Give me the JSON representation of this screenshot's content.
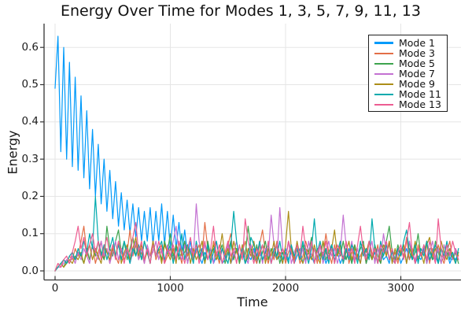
{
  "chart_data": {
    "type": "line",
    "title": "Energy Over Time for Modes 1, 3, 5, 7, 9, 11, 13",
    "xlabel": "Time",
    "ylabel": "Energy",
    "xlim": [
      -95,
      3525
    ],
    "ylim": [
      -0.016,
      0.66
    ],
    "grid": true,
    "legend_position": "top-right",
    "background_color": "#ffffff",
    "grid_color": "#e5e5e5",
    "axis_color": "#333333",
    "text_color": "#1c1c1c",
    "xticks": [
      0,
      1000,
      2000,
      3000
    ],
    "xtick_labels": [
      "0",
      "1000",
      "2000",
      "3000"
    ],
    "yticks": [
      0.0,
      0.1,
      0.2,
      0.3,
      0.4,
      0.5,
      0.6
    ],
    "ytick_labels": [
      "0.0",
      "0.1",
      "0.2",
      "0.3",
      "0.4",
      "0.5",
      "0.6"
    ],
    "x_start": 0,
    "x_step": 25,
    "series": [
      {
        "name": "Mode 1",
        "color": "#009AFA",
        "values": [
          0.49,
          0.63,
          0.32,
          0.6,
          0.3,
          0.56,
          0.28,
          0.52,
          0.27,
          0.47,
          0.25,
          0.43,
          0.22,
          0.38,
          0.2,
          0.34,
          0.18,
          0.3,
          0.16,
          0.27,
          0.14,
          0.24,
          0.12,
          0.21,
          0.11,
          0.19,
          0.1,
          0.18,
          0.09,
          0.17,
          0.08,
          0.16,
          0.08,
          0.17,
          0.07,
          0.16,
          0.08,
          0.18,
          0.07,
          0.16,
          0.06,
          0.15,
          0.06,
          0.13,
          0.05,
          0.11,
          0.04,
          0.08,
          0.03,
          0.06,
          0.04,
          0.02,
          0.05,
          0.03,
          0.06,
          0.02,
          0.04,
          0.05,
          0.02,
          0.03,
          0.05,
          0.02,
          0.04,
          0.06,
          0.03,
          0.05,
          0.02,
          0.04,
          0.03,
          0.06,
          0.02,
          0.05,
          0.03,
          0.04,
          0.06,
          0.02,
          0.05,
          0.03,
          0.04,
          0.02,
          0.06,
          0.03,
          0.05,
          0.02,
          0.04,
          0.06,
          0.02,
          0.05,
          0.03,
          0.04,
          0.02,
          0.06,
          0.03,
          0.05,
          0.02,
          0.04,
          0.06,
          0.03,
          0.05,
          0.02,
          0.04,
          0.03,
          0.06,
          0.02,
          0.05,
          0.03,
          0.04,
          0.06,
          0.02,
          0.05,
          0.03,
          0.05,
          0.02,
          0.06,
          0.03,
          0.04,
          0.02,
          0.06,
          0.03,
          0.05,
          0.02,
          0.04,
          0.06,
          0.03,
          0.05,
          0.02,
          0.04,
          0.03,
          0.06,
          0.02,
          0.05,
          0.03,
          0.04,
          0.02,
          0.06,
          0.03,
          0.05,
          0.02,
          0.04,
          0.03,
          0.05
        ]
      },
      {
        "name": "Mode 3",
        "color": "#E36F47",
        "values": [
          0.0,
          0.02,
          0.01,
          0.03,
          0.02,
          0.04,
          0.03,
          0.06,
          0.04,
          0.08,
          0.12,
          0.05,
          0.03,
          0.07,
          0.02,
          0.05,
          0.08,
          0.03,
          0.06,
          0.02,
          0.07,
          0.04,
          0.02,
          0.06,
          0.03,
          0.05,
          0.11,
          0.04,
          0.07,
          0.03,
          0.05,
          0.02,
          0.06,
          0.04,
          0.08,
          0.03,
          0.05,
          0.07,
          0.02,
          0.04,
          0.06,
          0.03,
          0.07,
          0.05,
          0.02,
          0.08,
          0.04,
          0.06,
          0.03,
          0.05,
          0.07,
          0.04,
          0.13,
          0.06,
          0.03,
          0.08,
          0.05,
          0.02,
          0.06,
          0.04,
          0.07,
          0.1,
          0.03,
          0.06,
          0.02,
          0.05,
          0.08,
          0.03,
          0.06,
          0.04,
          0.02,
          0.07,
          0.11,
          0.05,
          0.02,
          0.06,
          0.03,
          0.08,
          0.04,
          0.06,
          0.02,
          0.05,
          0.07,
          0.03,
          0.06,
          0.02,
          0.04,
          0.08,
          0.05,
          0.03,
          0.06,
          0.02,
          0.07,
          0.04,
          0.1,
          0.05,
          0.02,
          0.07,
          0.04,
          0.06,
          0.03,
          0.08,
          0.02,
          0.05,
          0.07,
          0.03,
          0.04,
          0.06,
          0.02,
          0.08,
          0.05,
          0.03,
          0.07,
          0.02,
          0.06,
          0.04,
          0.08,
          0.03,
          0.05,
          0.02,
          0.06,
          0.04,
          0.09,
          0.03,
          0.06,
          0.02,
          0.07,
          0.04,
          0.05,
          0.08,
          0.02,
          0.06,
          0.03,
          0.07,
          0.04,
          0.02,
          0.05,
          0.08,
          0.03,
          0.06,
          0.04
        ]
      },
      {
        "name": "Mode 5",
        "color": "#3DA44E",
        "values": [
          0.0,
          0.01,
          0.02,
          0.01,
          0.03,
          0.02,
          0.04,
          0.03,
          0.05,
          0.04,
          0.02,
          0.06,
          0.03,
          0.07,
          0.04,
          0.08,
          0.05,
          0.03,
          0.12,
          0.06,
          0.04,
          0.08,
          0.11,
          0.05,
          0.08,
          0.03,
          0.06,
          0.09,
          0.04,
          0.07,
          0.03,
          0.08,
          0.05,
          0.02,
          0.07,
          0.04,
          0.06,
          0.03,
          0.08,
          0.05,
          0.1,
          0.04,
          0.07,
          0.03,
          0.05,
          0.08,
          0.02,
          0.06,
          0.04,
          0.07,
          0.03,
          0.06,
          0.02,
          0.08,
          0.04,
          0.06,
          0.03,
          0.05,
          0.07,
          0.02,
          0.05,
          0.08,
          0.03,
          0.06,
          0.02,
          0.07,
          0.04,
          0.12,
          0.06,
          0.03,
          0.07,
          0.02,
          0.05,
          0.08,
          0.03,
          0.06,
          0.04,
          0.07,
          0.02,
          0.05,
          0.03,
          0.08,
          0.05,
          0.02,
          0.06,
          0.04,
          0.07,
          0.03,
          0.05,
          0.09,
          0.02,
          0.06,
          0.04,
          0.08,
          0.03,
          0.05,
          0.07,
          0.02,
          0.06,
          0.04,
          0.08,
          0.03,
          0.05,
          0.02,
          0.07,
          0.04,
          0.06,
          0.08,
          0.02,
          0.05,
          0.03,
          0.07,
          0.04,
          0.02,
          0.06,
          0.08,
          0.12,
          0.05,
          0.03,
          0.07,
          0.04,
          0.06,
          0.02,
          0.08,
          0.03,
          0.05,
          0.1,
          0.04,
          0.07,
          0.02,
          0.06,
          0.03,
          0.08,
          0.05,
          0.02,
          0.07,
          0.04,
          0.06,
          0.03,
          0.05,
          0.02
        ]
      },
      {
        "name": "Mode 7",
        "color": "#C371D2",
        "values": [
          0.0,
          0.01,
          0.01,
          0.02,
          0.03,
          0.02,
          0.04,
          0.02,
          0.05,
          0.03,
          0.06,
          0.04,
          0.02,
          0.07,
          0.05,
          0.03,
          0.08,
          0.04,
          0.06,
          0.02,
          0.05,
          0.08,
          0.03,
          0.06,
          0.04,
          0.07,
          0.02,
          0.05,
          0.08,
          0.03,
          0.06,
          0.02,
          0.07,
          0.04,
          0.05,
          0.08,
          0.03,
          0.06,
          0.02,
          0.07,
          0.04,
          0.08,
          0.12,
          0.05,
          0.03,
          0.07,
          0.02,
          0.06,
          0.04,
          0.18,
          0.08,
          0.04,
          0.07,
          0.03,
          0.05,
          0.02,
          0.08,
          0.04,
          0.06,
          0.03,
          0.07,
          0.02,
          0.05,
          0.08,
          0.03,
          0.06,
          0.04,
          0.02,
          0.07,
          0.05,
          0.03,
          0.08,
          0.02,
          0.06,
          0.04,
          0.15,
          0.07,
          0.03,
          0.17,
          0.06,
          0.04,
          0.08,
          0.02,
          0.05,
          0.07,
          0.03,
          0.06,
          0.02,
          0.08,
          0.04,
          0.06,
          0.03,
          0.07,
          0.02,
          0.05,
          0.08,
          0.04,
          0.06,
          0.02,
          0.05,
          0.15,
          0.07,
          0.04,
          0.08,
          0.03,
          0.06,
          0.02,
          0.07,
          0.04,
          0.05,
          0.08,
          0.02,
          0.06,
          0.03,
          0.1,
          0.05,
          0.07,
          0.03,
          0.02,
          0.06,
          0.04,
          0.07,
          0.02,
          0.08,
          0.05,
          0.03,
          0.06,
          0.04,
          0.07,
          0.02,
          0.05,
          0.08,
          0.03,
          0.06,
          0.02,
          0.07,
          0.04,
          0.05,
          0.03,
          0.06,
          0.03
        ]
      },
      {
        "name": "Mode 9",
        "color": "#AC8E18",
        "values": [
          0.0,
          0.01,
          0.02,
          0.01,
          0.02,
          0.03,
          0.02,
          0.04,
          0.03,
          0.05,
          0.02,
          0.05,
          0.07,
          0.03,
          0.06,
          0.04,
          0.02,
          0.07,
          0.05,
          0.03,
          0.06,
          0.04,
          0.08,
          0.02,
          0.05,
          0.07,
          0.03,
          0.06,
          0.09,
          0.04,
          0.07,
          0.03,
          0.05,
          0.02,
          0.08,
          0.04,
          0.06,
          0.02,
          0.07,
          0.05,
          0.03,
          0.06,
          0.02,
          0.08,
          0.04,
          0.05,
          0.07,
          0.02,
          0.06,
          0.03,
          0.05,
          0.08,
          0.02,
          0.06,
          0.04,
          0.07,
          0.03,
          0.05,
          0.1,
          0.04,
          0.06,
          0.02,
          0.08,
          0.05,
          0.03,
          0.07,
          0.02,
          0.06,
          0.04,
          0.08,
          0.03,
          0.05,
          0.07,
          0.02,
          0.06,
          0.04,
          0.08,
          0.03,
          0.05,
          0.02,
          0.07,
          0.16,
          0.06,
          0.03,
          0.08,
          0.04,
          0.02,
          0.06,
          0.05,
          0.03,
          0.07,
          0.04,
          0.02,
          0.08,
          0.05,
          0.03,
          0.06,
          0.11,
          0.04,
          0.07,
          0.02,
          0.05,
          0.08,
          0.03,
          0.06,
          0.04,
          0.02,
          0.07,
          0.05,
          0.08,
          0.03,
          0.06,
          0.02,
          0.05,
          0.07,
          0.04,
          0.08,
          0.02,
          0.06,
          0.03,
          0.05,
          0.07,
          0.02,
          0.06,
          0.04,
          0.08,
          0.03,
          0.05,
          0.02,
          0.07,
          0.09,
          0.04,
          0.06,
          0.02,
          0.08,
          0.05,
          0.03,
          0.06,
          0.04,
          0.02,
          0.05
        ]
      },
      {
        "name": "Mode 11",
        "color": "#00AAAE",
        "values": [
          0.0,
          0.01,
          0.02,
          0.03,
          0.02,
          0.04,
          0.05,
          0.03,
          0.06,
          0.04,
          0.08,
          0.05,
          0.1,
          0.06,
          0.2,
          0.08,
          0.04,
          0.07,
          0.03,
          0.06,
          0.09,
          0.04,
          0.07,
          0.03,
          0.08,
          0.05,
          0.02,
          0.06,
          0.04,
          0.07,
          0.03,
          0.08,
          0.05,
          0.02,
          0.07,
          0.04,
          0.06,
          0.08,
          0.03,
          0.05,
          0.07,
          0.02,
          0.06,
          0.04,
          0.1,
          0.03,
          0.07,
          0.05,
          0.02,
          0.08,
          0.04,
          0.06,
          0.03,
          0.07,
          0.02,
          0.05,
          0.08,
          0.03,
          0.06,
          0.04,
          0.02,
          0.07,
          0.16,
          0.08,
          0.03,
          0.06,
          0.02,
          0.04,
          0.09,
          0.07,
          0.04,
          0.08,
          0.03,
          0.05,
          0.07,
          0.02,
          0.06,
          0.04,
          0.08,
          0.03,
          0.05,
          0.02,
          0.07,
          0.04,
          0.06,
          0.03,
          0.08,
          0.05,
          0.02,
          0.06,
          0.14,
          0.05,
          0.08,
          0.03,
          0.06,
          0.02,
          0.07,
          0.04,
          0.05,
          0.08,
          0.02,
          0.06,
          0.03,
          0.07,
          0.05,
          0.02,
          0.08,
          0.04,
          0.06,
          0.03,
          0.14,
          0.06,
          0.02,
          0.08,
          0.04,
          0.07,
          0.03,
          0.05,
          0.02,
          0.06,
          0.04,
          0.08,
          0.11,
          0.05,
          0.03,
          0.07,
          0.02,
          0.06,
          0.04,
          0.08,
          0.03,
          0.05,
          0.07,
          0.02,
          0.06,
          0.04,
          0.08,
          0.03,
          0.05,
          0.02,
          0.06
        ]
      },
      {
        "name": "Mode 13",
        "color": "#ED5D92",
        "values": [
          0.0,
          0.02,
          0.01,
          0.03,
          0.04,
          0.02,
          0.05,
          0.08,
          0.12,
          0.06,
          0.09,
          0.04,
          0.07,
          0.1,
          0.05,
          0.08,
          0.03,
          0.06,
          0.09,
          0.04,
          0.07,
          0.03,
          0.08,
          0.05,
          0.02,
          0.06,
          0.04,
          0.09,
          0.13,
          0.05,
          0.08,
          0.03,
          0.06,
          0.02,
          0.07,
          0.04,
          0.08,
          0.05,
          0.02,
          0.06,
          0.04,
          0.07,
          0.03,
          0.08,
          0.05,
          0.02,
          0.06,
          0.09,
          0.04,
          0.07,
          0.02,
          0.05,
          0.08,
          0.03,
          0.06,
          0.12,
          0.04,
          0.07,
          0.02,
          0.05,
          0.08,
          0.04,
          0.06,
          0.02,
          0.07,
          0.03,
          0.14,
          0.08,
          0.05,
          0.02,
          0.06,
          0.04,
          0.07,
          0.03,
          0.08,
          0.02,
          0.05,
          0.07,
          0.04,
          0.06,
          0.03,
          0.08,
          0.05,
          0.02,
          0.07,
          0.04,
          0.12,
          0.06,
          0.03,
          0.08,
          0.02,
          0.05,
          0.07,
          0.04,
          0.08,
          0.03,
          0.06,
          0.02,
          0.07,
          0.05,
          0.03,
          0.08,
          0.04,
          0.06,
          0.02,
          0.07,
          0.12,
          0.05,
          0.03,
          0.08,
          0.04,
          0.06,
          0.02,
          0.07,
          0.05,
          0.08,
          0.03,
          0.06,
          0.02,
          0.05,
          0.07,
          0.03,
          0.08,
          0.13,
          0.05,
          0.02,
          0.06,
          0.04,
          0.07,
          0.03,
          0.08,
          0.05,
          0.02,
          0.14,
          0.06,
          0.03,
          0.07,
          0.04,
          0.08,
          0.05,
          0.03
        ]
      }
    ]
  }
}
